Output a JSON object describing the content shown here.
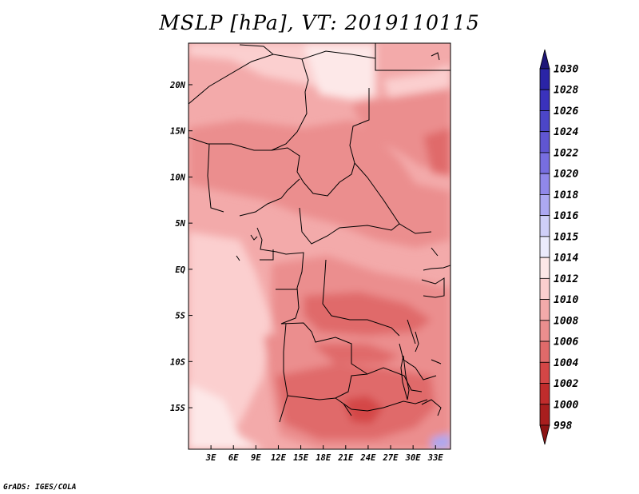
{
  "title": "MSLP [hPa], VT: 2019110115",
  "credit": "GrADS: IGES/COLA",
  "map": {
    "lon_range": [
      0,
      35
    ],
    "lat_range": [
      -19.5,
      24.5
    ],
    "lon_ticks": [
      3,
      6,
      9,
      12,
      15,
      18,
      21,
      24,
      27,
      30,
      33
    ],
    "lon_tick_labels": [
      "3E",
      "6E",
      "9E",
      "12E",
      "15E",
      "18E",
      "21E",
      "24E",
      "27E",
      "30E",
      "33E"
    ],
    "lat_ticks": [
      20,
      15,
      10,
      5,
      0,
      -5,
      -10,
      -15
    ],
    "lat_tick_labels": [
      "20N",
      "15N",
      "10N",
      "5N",
      "EQ",
      "5S",
      "10S",
      "15S"
    ]
  },
  "colorbar": {
    "levels": [
      "1030",
      "1028",
      "1026",
      "1024",
      "1022",
      "1020",
      "1018",
      "1016",
      "1015",
      "1014",
      "1012",
      "1010",
      "1008",
      "1006",
      "1004",
      "1002",
      "1000",
      "998"
    ],
    "colors": [
      "#1e1678",
      "#2a24a6",
      "#3a32bc",
      "#4c46c8",
      "#6056d2",
      "#776ee0",
      "#9088ea",
      "#aca8f2",
      "#cfcff8",
      "#ebebfc",
      "#fde8e8",
      "#fbcfcf",
      "#f3aaaa",
      "#eb8e8e",
      "#e06a6a",
      "#d44646",
      "#c02c2c",
      "#a81e1e",
      "#8c1414"
    ]
  }
}
